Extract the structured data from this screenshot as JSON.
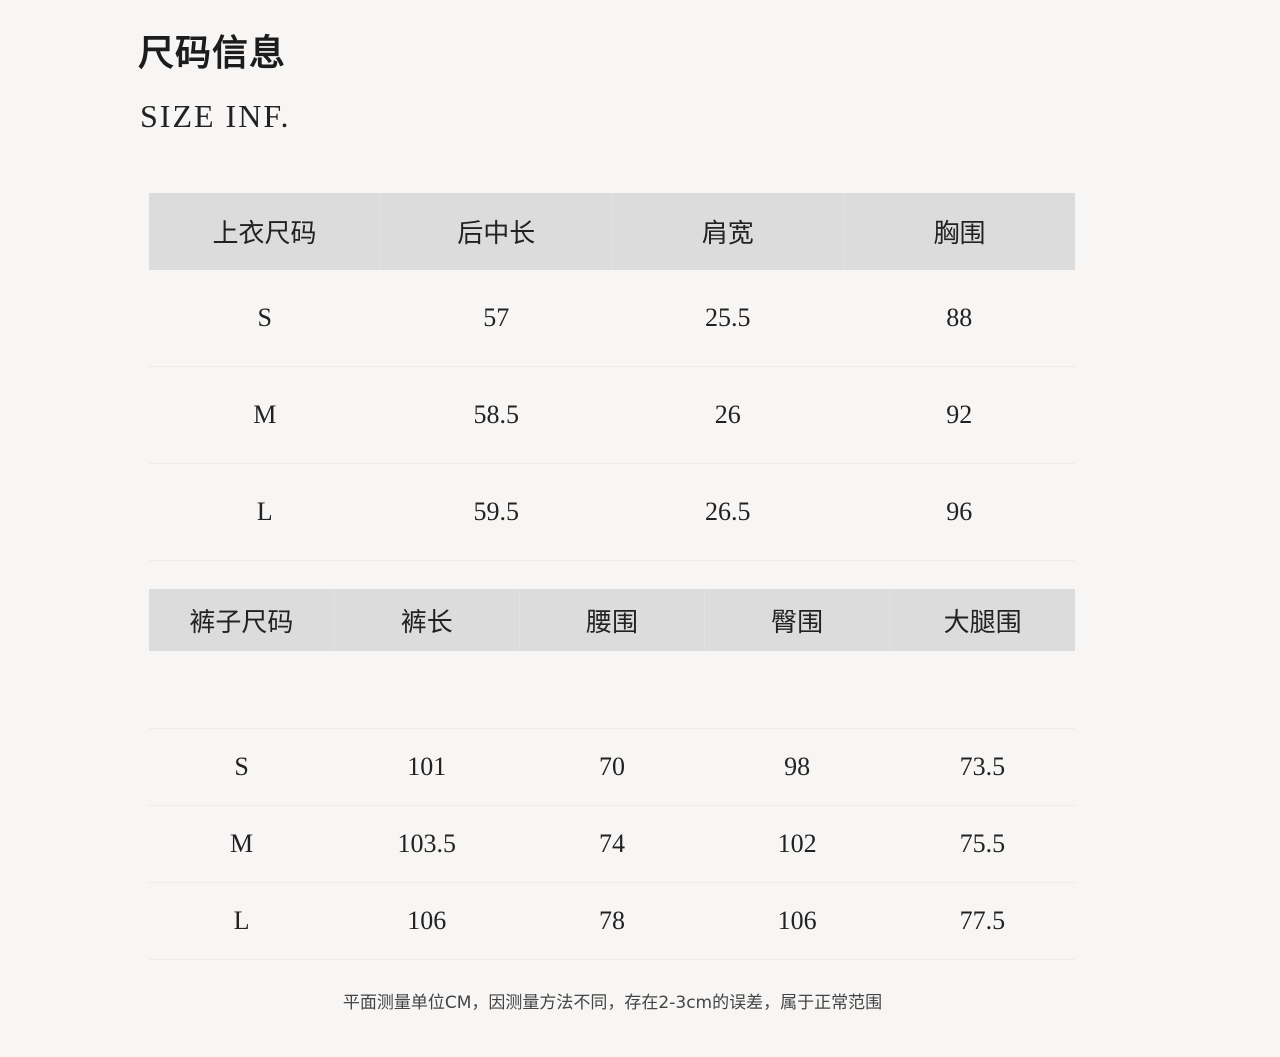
{
  "title": "尺码信息",
  "subtitle": "SIZE INF.",
  "top_table": {
    "headers": [
      "上衣尺码",
      "后中长",
      "肩宽",
      "胸围"
    ],
    "rows": [
      [
        "S",
        "57",
        "25.5",
        "88"
      ],
      [
        "M",
        "58.5",
        "26",
        "92"
      ],
      [
        "L",
        "59.5",
        "26.5",
        "96"
      ]
    ]
  },
  "bottom_table": {
    "headers": [
      "裤子尺码",
      "裤长",
      "腰围",
      "臀围",
      "大腿围"
    ],
    "rows": [
      [
        "S",
        "101",
        "70",
        "98",
        "73.5"
      ],
      [
        "M",
        "103.5",
        "74",
        "102",
        "75.5"
      ],
      [
        "L",
        "106",
        "78",
        "106",
        "77.5"
      ]
    ]
  },
  "note": "平面测量单位CM，因测量方法不同，存在2-3cm的误差，属于正常范围",
  "colors": {
    "background": "#f7f6f5",
    "header_bg": "#dcdcdc"
  }
}
